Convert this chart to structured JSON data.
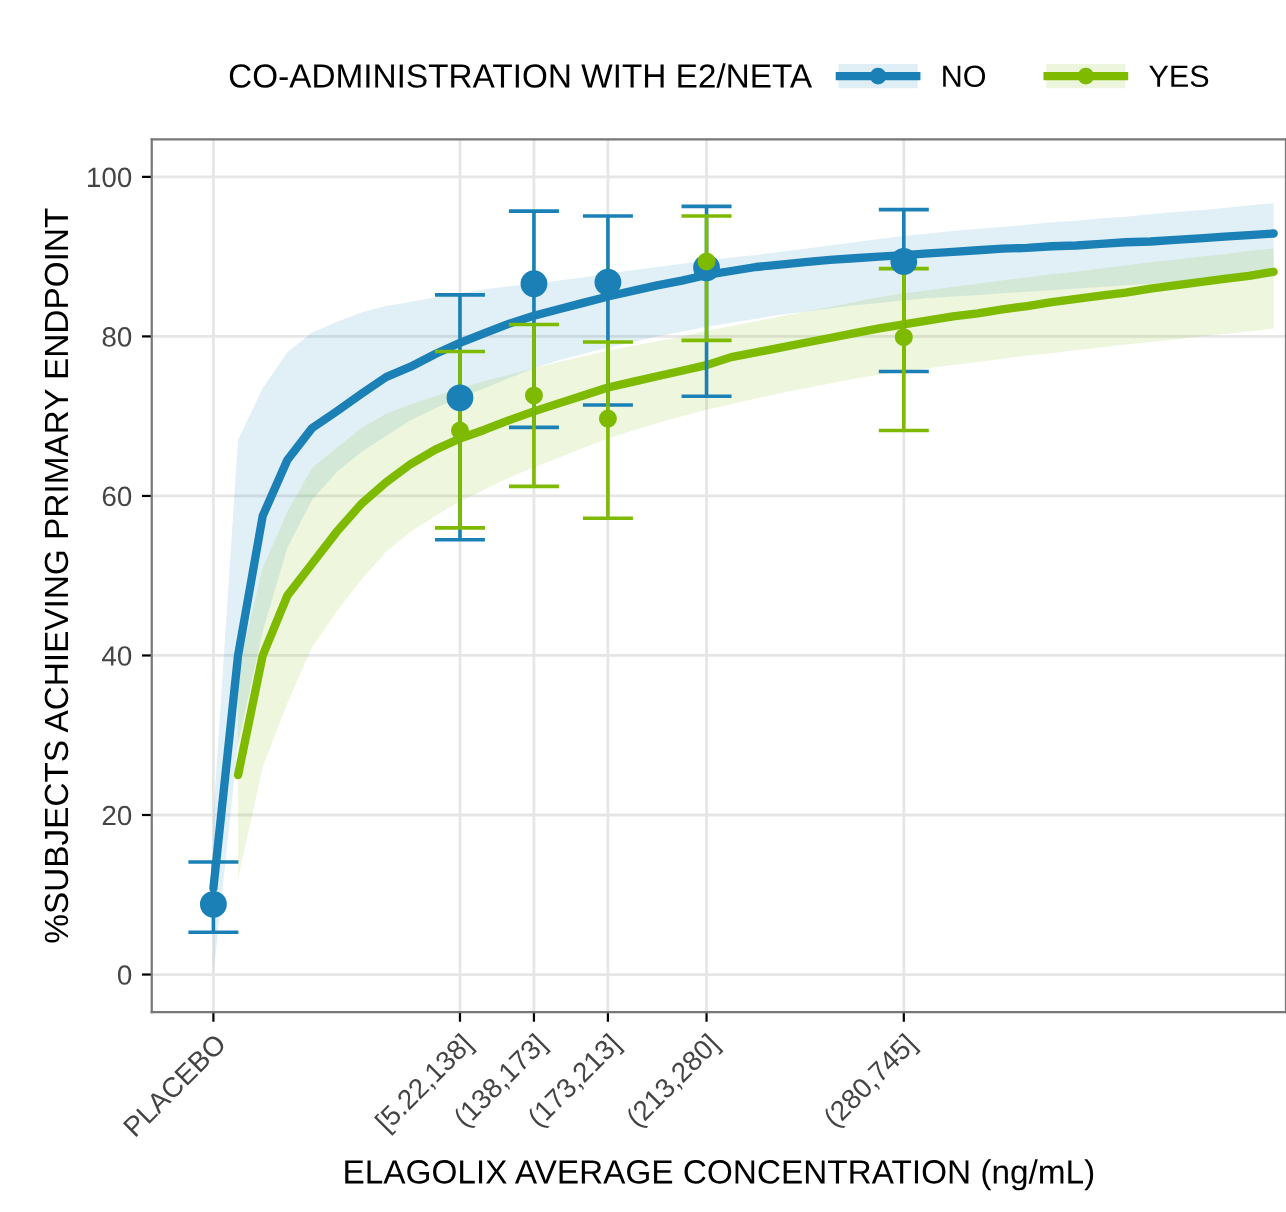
{
  "chart_data": {
    "type": "line",
    "legend_title": "CO-ADMINISTRATION WITH E2/NETA",
    "xlabel": "ELAGOLIX AVERAGE CONCENTRATION (ng/mL)",
    "ylabel": "%SUBJECTS ACHIEVING PRIMARY ENDPOINT",
    "categories": [
      null,
      null,
      "PLACEBO",
      null,
      null,
      null,
      null,
      null,
      null,
      null,
      null,
      null,
      "[5.22,138]",
      null,
      null,
      "(138,173]",
      null,
      null,
      "(173,213]",
      null,
      null,
      null,
      "(213,280]",
      null,
      null,
      null,
      null,
      null,
      null,
      null,
      "(280,745]",
      null,
      null,
      null,
      null,
      null,
      null,
      null,
      null,
      null,
      null,
      null,
      null,
      null,
      null,
      null
    ],
    "ylim": [
      -4.7,
      104.7
    ],
    "yticks": [
      0,
      20,
      40,
      60,
      80,
      100
    ],
    "grid": true,
    "legend": "top",
    "series": [
      {
        "name": "NO",
        "color": "#1a80b6",
        "values": [
          null,
          null,
          10.8,
          40,
          57.5,
          64.5,
          68.5,
          70.6,
          72.8,
          74.9,
          76.2,
          77.8,
          79.2,
          80.4,
          81.6,
          82.6,
          83.4,
          84.2,
          85,
          85.7,
          86.4,
          87,
          87.7,
          88.2,
          88.7,
          89,
          89.3,
          89.6,
          89.8,
          90,
          90.2,
          90.4,
          90.6,
          90.8,
          91,
          91.1,
          91.3,
          91.4,
          91.6,
          91.8,
          91.9,
          92.1,
          92.3,
          92.5,
          92.7,
          92.9
        ],
        "upper": [
          null,
          null,
          20,
          67,
          73.5,
          78,
          80.5,
          81.8,
          83,
          83.8,
          84.3,
          84.9,
          85.4,
          85.9,
          86.3,
          86.6,
          87,
          87.4,
          87.9,
          88.3,
          88.7,
          89.1,
          89.5,
          89.9,
          90.2,
          90.6,
          91,
          91.4,
          91.8,
          92.2,
          92.6,
          92.9,
          93.2,
          93.5,
          93.7,
          94,
          94.3,
          94.5,
          94.8,
          95,
          95.3,
          95.6,
          95.8,
          96.1,
          96.4,
          96.7
        ],
        "lower": [
          null,
          null,
          0,
          29,
          43,
          53.5,
          59.5,
          63,
          65.5,
          67.5,
          69.5,
          71,
          72.3,
          73.5,
          74.8,
          76,
          77,
          77.8,
          78.6,
          79.3,
          80,
          80.6,
          81.2,
          81.7,
          82.2,
          82.7,
          83.1,
          83.5,
          83.9,
          84.2,
          84.5,
          84.8,
          85,
          85.2,
          85.4,
          85.6,
          85.8,
          86,
          86.2,
          86.4,
          86.6,
          86.8,
          87,
          87.2,
          87.4,
          87.6
        ]
      },
      {
        "name": "YES",
        "color": "#7dba00",
        "values": [
          null,
          null,
          null,
          25,
          40,
          47.5,
          51.5,
          55.5,
          59,
          61.7,
          64,
          65.8,
          67.2,
          68.3,
          69.5,
          70.6,
          71.6,
          72.6,
          73.6,
          74.3,
          75,
          75.7,
          76.4,
          77.4,
          78,
          78.6,
          79.2,
          79.8,
          80.4,
          81,
          81.5,
          82,
          82.5,
          82.9,
          83.4,
          83.8,
          84.3,
          84.7,
          85.1,
          85.5,
          86,
          86.4,
          86.8,
          87.2,
          87.6,
          88.1
        ],
        "upper": [
          null,
          null,
          null,
          38,
          51,
          58,
          63.5,
          66,
          68.5,
          70.3,
          71.5,
          72.5,
          73.5,
          74.4,
          75.2,
          76,
          76.8,
          77.5,
          78.2,
          78.8,
          79.4,
          80,
          80.7,
          81.3,
          81.9,
          82.5,
          83.1,
          83.7,
          84.3,
          84.9,
          85.4,
          85.8,
          86.2,
          86.6,
          87,
          87.4,
          87.8,
          88.1,
          88.5,
          88.9,
          89.3,
          89.6,
          90,
          90.3,
          90.7,
          91
        ],
        "lower": [
          null,
          null,
          null,
          12,
          26,
          34,
          41,
          45.5,
          49.5,
          53,
          55.5,
          57.5,
          59.3,
          60.8,
          62.3,
          63.6,
          64.8,
          66,
          67.2,
          68.2,
          69.1,
          70,
          70.8,
          71.5,
          72.2,
          72.9,
          73.5,
          74.1,
          74.7,
          75.2,
          75.6,
          76,
          76.4,
          76.8,
          77.2,
          77.6,
          77.9,
          78.3,
          78.6,
          79,
          79.3,
          79.6,
          80,
          80.3,
          80.6,
          81
        ]
      },
      {
        "type": "scatter",
        "color": "#1a80b6",
        "values": [
          null,
          null,
          8.8,
          null,
          null,
          null,
          null,
          null,
          null,
          null,
          null,
          null,
          72.3,
          null,
          null,
          86.6,
          null,
          null,
          86.8,
          null,
          null,
          null,
          88.6,
          null,
          null,
          null,
          null,
          null,
          null,
          null,
          89.4,
          null,
          null,
          null,
          null,
          null,
          null,
          null,
          null,
          null,
          null,
          null,
          null,
          null,
          null,
          null
        ],
        "errors": [
          null,
          null,
          [
            5.3,
            14.1
          ],
          null,
          null,
          null,
          null,
          null,
          null,
          null,
          null,
          null,
          [
            54.5,
            85.2
          ],
          null,
          null,
          [
            68.6,
            95.7
          ],
          null,
          null,
          [
            71.4,
            95.1
          ],
          null,
          null,
          null,
          [
            72.5,
            96.3
          ],
          null,
          null,
          null,
          null,
          null,
          null,
          null,
          [
            75.6,
            95.9
          ],
          null,
          null,
          null,
          null,
          null,
          null,
          null,
          null,
          null,
          null,
          null,
          null,
          null,
          null,
          null
        ]
      },
      {
        "type": "scatter",
        "color": "#7dba00",
        "values": [
          null,
          null,
          null,
          null,
          null,
          null,
          null,
          null,
          null,
          null,
          null,
          null,
          68.2,
          null,
          null,
          72.6,
          null,
          null,
          69.7,
          null,
          null,
          null,
          89.4,
          null,
          null,
          null,
          null,
          null,
          null,
          null,
          79.9,
          null,
          null,
          null,
          null,
          null,
          null,
          null,
          null,
          null,
          null,
          null,
          null,
          null,
          null,
          null
        ],
        "errors": [
          null,
          null,
          null,
          null,
          null,
          null,
          null,
          null,
          null,
          null,
          null,
          null,
          [
            56.0,
            78.1
          ],
          null,
          null,
          [
            61.2,
            81.5
          ],
          null,
          null,
          [
            57.2,
            79.3
          ],
          null,
          null,
          null,
          [
            79.5,
            95.1
          ],
          null,
          null,
          null,
          null,
          null,
          null,
          null,
          [
            68.2,
            88.5
          ],
          null,
          null,
          null,
          null,
          null,
          null,
          null,
          null,
          null,
          null,
          null,
          null,
          null,
          null,
          null
        ]
      }
    ]
  }
}
